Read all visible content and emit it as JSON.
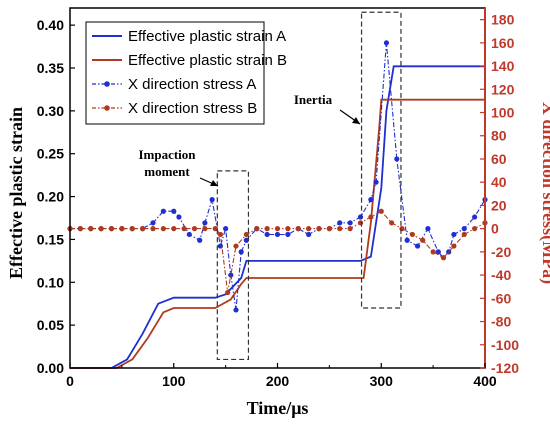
{
  "chart_data": {
    "type": "line",
    "xlabel": "Time/μs",
    "ylabel_left": "Effective plastic strain",
    "ylabel_right": "X direction stress(MPa)",
    "xlim": [
      0,
      400
    ],
    "ylim_left": [
      0,
      0.42
    ],
    "ylim_right": [
      -120,
      190
    ],
    "x_ticks": [
      0,
      100,
      200,
      300,
      400
    ],
    "y_left_ticks": [
      0.0,
      0.05,
      0.1,
      0.15,
      0.2,
      0.25,
      0.3,
      0.35,
      0.4
    ],
    "y_left_tick_labels": [
      "0.00",
      "0.05",
      "0.10",
      "0.15",
      "0.20",
      "0.25",
      "0.30",
      "0.35",
      "0.40"
    ],
    "y_right_ticks": [
      -120,
      -100,
      -80,
      -60,
      -40,
      -20,
      0,
      20,
      40,
      60,
      80,
      100,
      120,
      140,
      160,
      180
    ],
    "legend_position": "top-left",
    "colors": {
      "left_axis": "#000000",
      "right_axis": "#c0392b"
    },
    "series": [
      {
        "name": "Effective plastic strain A",
        "axis": "left",
        "color": "#1f2fd0",
        "style": "solid",
        "x": [
          0,
          40,
          55,
          70,
          85,
          100,
          140,
          150,
          165,
          170,
          280,
          290,
          300,
          305,
          312,
          400
        ],
        "y": [
          0,
          0,
          0.01,
          0.04,
          0.075,
          0.082,
          0.082,
          0.086,
          0.105,
          0.125,
          0.125,
          0.13,
          0.21,
          0.3,
          0.352,
          0.352
        ]
      },
      {
        "name": "Effective plastic strain B",
        "axis": "left",
        "color": "#b03a1e",
        "style": "solid",
        "x": [
          0,
          45,
          60,
          75,
          90,
          100,
          140,
          155,
          165,
          170,
          283,
          290,
          298,
          300,
          400
        ],
        "y": [
          0,
          0,
          0.01,
          0.035,
          0.065,
          0.07,
          0.07,
          0.08,
          0.098,
          0.105,
          0.105,
          0.17,
          0.28,
          0.313,
          0.313
        ]
      },
      {
        "name": "X direction stress A",
        "axis": "right",
        "color": "#1f2fd0",
        "style": "dash-dot-marker",
        "x": [
          0,
          10,
          20,
          30,
          40,
          50,
          60,
          70,
          80,
          90,
          100,
          105,
          115,
          125,
          130,
          137,
          145,
          150,
          155,
          160,
          165,
          170,
          180,
          190,
          200,
          210,
          220,
          230,
          240,
          250,
          260,
          270,
          280,
          290,
          295,
          305,
          315,
          325,
          335,
          345,
          355,
          360,
          365,
          370,
          380,
          390,
          400
        ],
        "y": [
          0,
          0,
          0,
          0,
          0,
          0,
          0,
          0,
          5,
          15,
          15,
          10,
          -5,
          -10,
          5,
          25,
          -15,
          0,
          -40,
          -70,
          -20,
          -10,
          0,
          -5,
          -5,
          -5,
          0,
          -5,
          0,
          0,
          5,
          5,
          10,
          25,
          40,
          160,
          60,
          -10,
          -15,
          0,
          -20,
          -25,
          -20,
          -5,
          0,
          10,
          25
        ]
      },
      {
        "name": "X direction stress B",
        "axis": "right",
        "color": "#b03a1e",
        "style": "dash-dot-marker",
        "x": [
          0,
          10,
          20,
          30,
          40,
          50,
          60,
          70,
          80,
          90,
          100,
          110,
          120,
          130,
          140,
          145,
          152,
          160,
          170,
          180,
          190,
          200,
          210,
          220,
          230,
          240,
          250,
          260,
          270,
          280,
          290,
          300,
          310,
          320,
          330,
          340,
          350,
          360,
          370,
          380,
          390,
          400
        ],
        "y": [
          0,
          0,
          0,
          0,
          0,
          0,
          0,
          0,
          0,
          0,
          0,
          0,
          0,
          0,
          0,
          -5,
          -55,
          -15,
          -5,
          0,
          0,
          0,
          0,
          0,
          0,
          0,
          0,
          0,
          0,
          5,
          10,
          15,
          5,
          0,
          -5,
          -10,
          -20,
          -25,
          -15,
          -5,
          0,
          5
        ]
      }
    ],
    "annotations": [
      {
        "text": "Impaction moment",
        "lines": [
          "Impaction",
          "moment"
        ],
        "box_x": [
          142,
          172
        ],
        "box_y_left": [
          0.01,
          0.23
        ]
      },
      {
        "text": "Inertia",
        "lines": [
          "Inertia"
        ],
        "box_x": [
          281,
          319
        ],
        "box_y_left": [
          0.07,
          0.415
        ]
      }
    ]
  }
}
